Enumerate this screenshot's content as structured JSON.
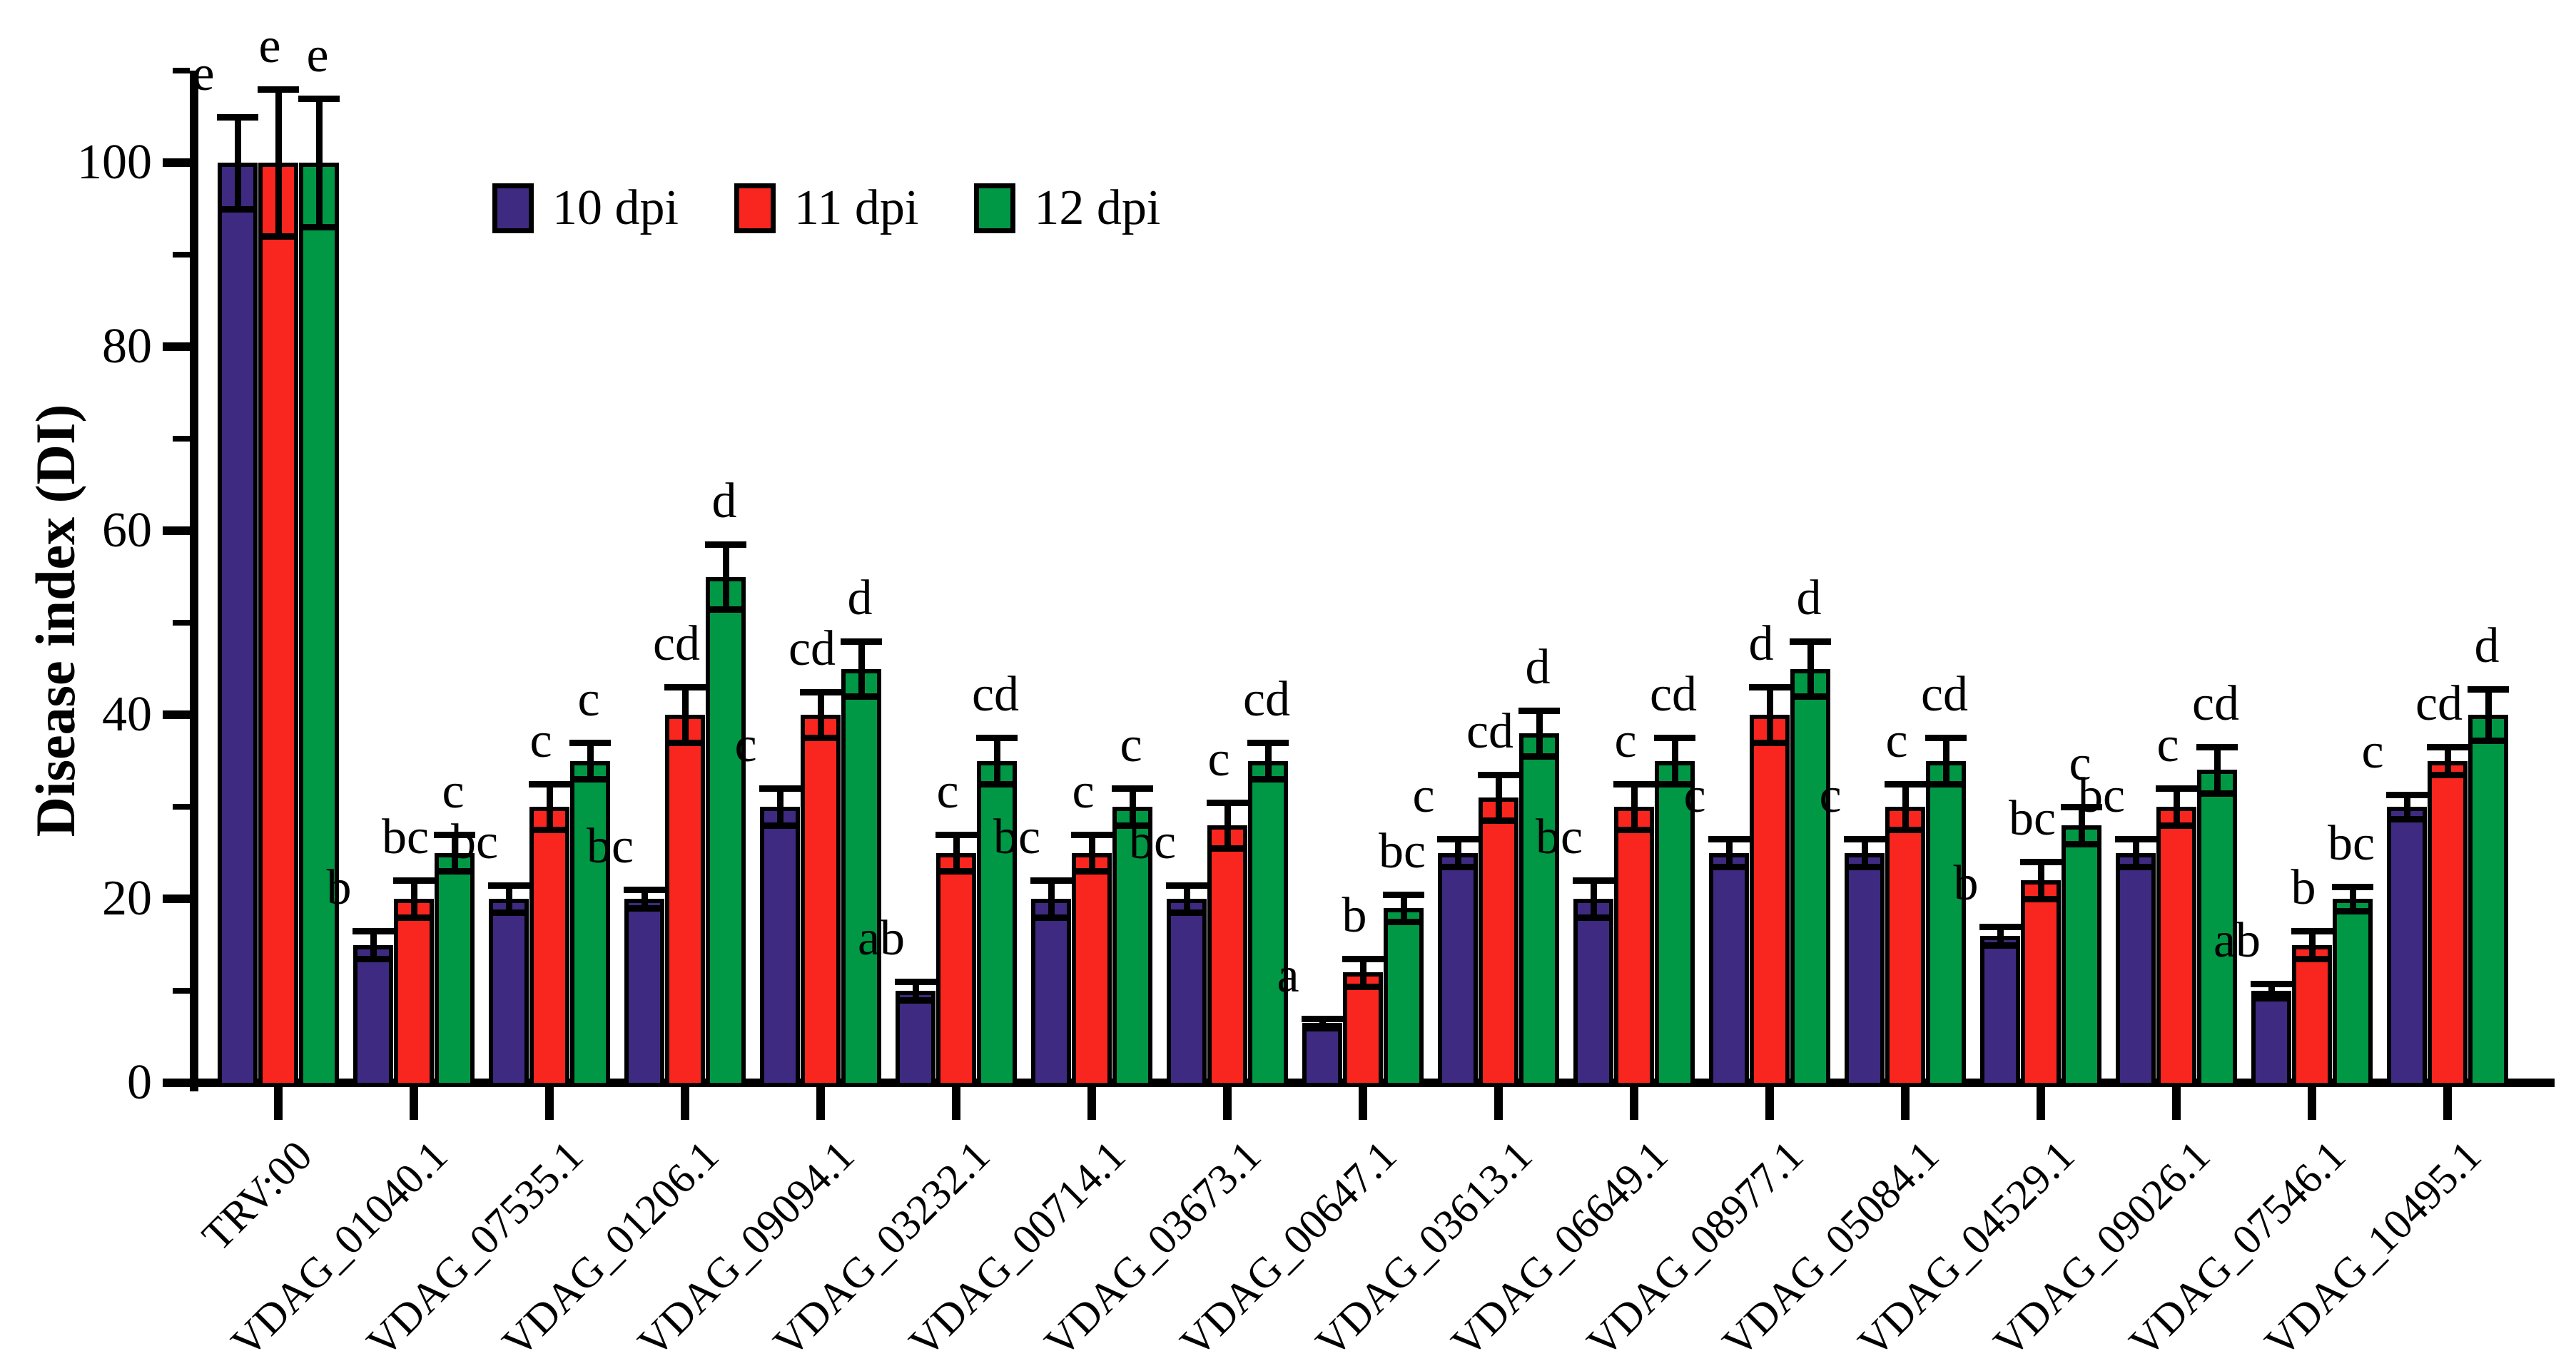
{
  "chart_data": {
    "type": "bar",
    "title": "",
    "ylabel": "Disease index (DI)",
    "xlabel": "",
    "ylim": [
      0,
      110
    ],
    "yticks_major": [
      0,
      20,
      40,
      60,
      80,
      100
    ],
    "yticks_minor": [
      10,
      30,
      50,
      70,
      90,
      110
    ],
    "grid": "off",
    "legend_position": "upper-left-inside",
    "categories": [
      "TRV:00",
      "VDAG_01040.1",
      "VDAG_07535.1",
      "VDAG_01206.1",
      "VDAG_09094.1",
      "VDAG_03232.1",
      "VDAG_00714.1",
      "VDAG_03673.1",
      "VDAG_00647.1",
      "VDAG_03613.1",
      "VDAG_06649.1",
      "VDAG_08977.1",
      "VDAG_05084.1",
      "VDAG_04529.1",
      "VDAG_09026.1",
      "VDAG_07546.1",
      "VDAG_10495.1"
    ],
    "series": [
      {
        "name": "10 dpi",
        "color": "#3E2A80",
        "values": [
          100,
          15,
          20,
          20,
          30,
          10,
          20,
          20,
          6.5,
          25,
          20,
          25,
          25,
          16,
          25,
          10,
          30
        ],
        "errors": [
          5,
          1.5,
          1.5,
          1,
          2,
          1,
          2,
          1.5,
          0.5,
          1.5,
          2,
          1.5,
          1.5,
          1,
          1.5,
          0.8,
          1.3
        ],
        "letters": [
          "e",
          "b",
          "bc",
          "bc",
          "c",
          "ab",
          "bc",
          "bc",
          "a",
          "c",
          "bc",
          "c",
          "c",
          "b",
          "bc",
          "ab",
          "c"
        ]
      },
      {
        "name": "11 dpi",
        "color": "#F9261F",
        "values": [
          100,
          20,
          30,
          40,
          40,
          25,
          25,
          28,
          12,
          31,
          30,
          40,
          30,
          22,
          30,
          15,
          35
        ],
        "errors": [
          8,
          2,
          2.5,
          3,
          2.5,
          2,
          2,
          2.5,
          1.5,
          2.5,
          2.5,
          3,
          2.5,
          2,
          2,
          1.5,
          1.5
        ],
        "letters": [
          "e",
          "bc",
          "c",
          "cd",
          "cd",
          "c",
          "c",
          "c",
          "b",
          "cd",
          "c",
          "d",
          "c",
          "bc",
          "c",
          "b",
          "cd"
        ]
      },
      {
        "name": "12 dpi",
        "color": "#009844",
        "values": [
          100,
          25,
          35,
          55,
          45,
          35,
          30,
          35,
          19,
          38,
          35,
          45,
          35,
          28,
          34,
          20,
          40
        ],
        "errors": [
          7,
          2,
          2,
          3.5,
          3,
          2.5,
          2,
          2,
          1.5,
          2.5,
          2.5,
          3,
          2.5,
          2,
          2.5,
          1.3,
          2.8
        ],
        "letters": [
          "e",
          "c",
          "c",
          "d",
          "d",
          "cd",
          "c",
          "cd",
          "bc",
          "d",
          "cd",
          "d",
          "cd",
          "c",
          "cd",
          "bc",
          "d"
        ]
      }
    ]
  },
  "colors": {
    "axis": "#000000",
    "background": "#ffffff",
    "bar_outline": "#000000"
  }
}
